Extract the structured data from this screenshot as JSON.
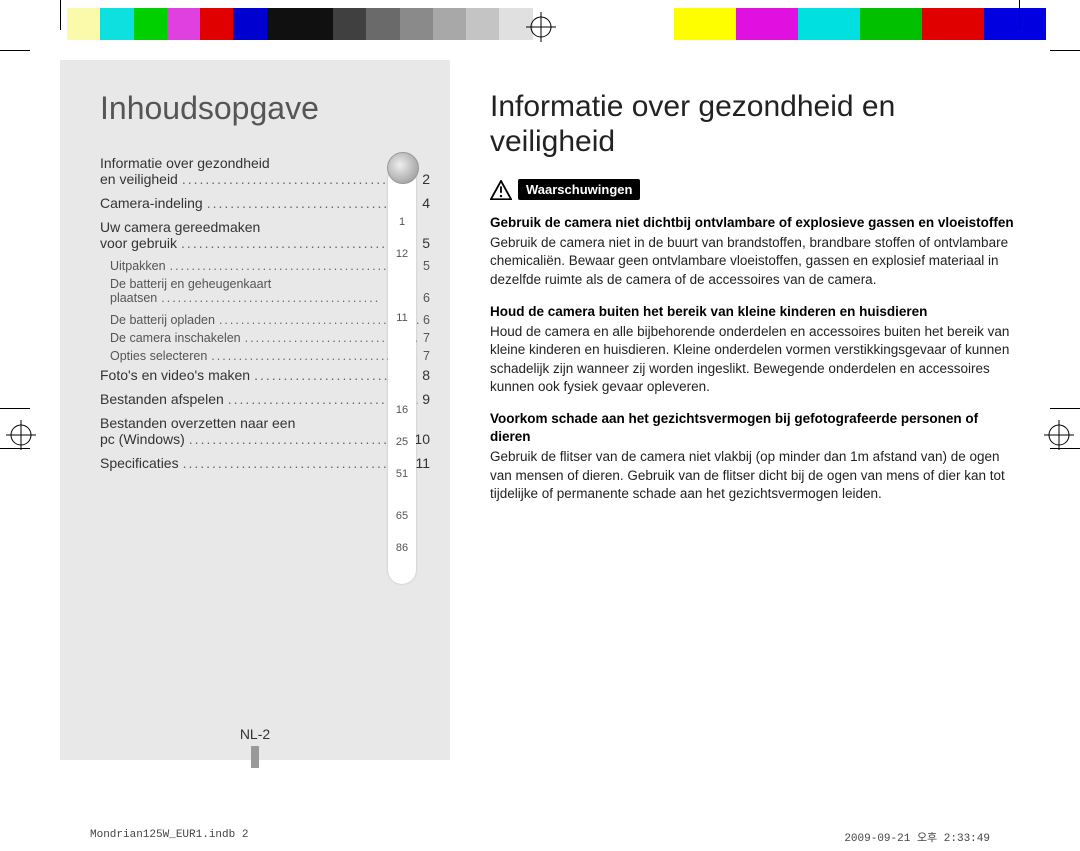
{
  "colorbars": [
    "#ffffff",
    "#fafaaa",
    "#0ee0e0",
    "#00d000",
    "#e040e0",
    "#e00000",
    "#0000d0",
    "#101010",
    "#101010",
    "#404040",
    "#6a6a6a",
    "#8a8a8a",
    "#a8a8a8",
    "#c4c4c4",
    "#e0e0e0",
    "#ffffff"
  ],
  "colorbars_right": [
    "#fefe00",
    "#e010e0",
    "#00e0e0",
    "#00c000",
    "#e00000",
    "#0000e0"
  ],
  "toc": {
    "title": "Inhoudsopgave",
    "items": [
      {
        "type": "two",
        "l1": "Informatie over gezondheid",
        "l2": "en veiligheid",
        "p": "2"
      },
      {
        "type": "one",
        "label": "Camera-indeling",
        "p": "4"
      },
      {
        "type": "two",
        "l1": "Uw camera gereedmaken",
        "l2": "voor gebruik",
        "p": "5"
      },
      {
        "type": "sub",
        "label": "Uitpakken",
        "p": "5"
      },
      {
        "type": "subtwo",
        "l1": "De batterij en geheugenkaart",
        "l2": "plaatsen",
        "p": "6"
      },
      {
        "type": "sub",
        "label": "De batterij opladen",
        "p": "6"
      },
      {
        "type": "sub",
        "label": "De camera inschakelen",
        "p": "7"
      },
      {
        "type": "sub",
        "label": "Opties selecteren",
        "p": "7"
      },
      {
        "type": "one",
        "label": "Foto's en video's maken",
        "p": "8"
      },
      {
        "type": "one",
        "label": "Bestanden afspelen",
        "p": "9"
      },
      {
        "type": "two",
        "l1": "Bestanden overzetten naar een",
        "l2": "pc (Windows)",
        "p": "10"
      },
      {
        "type": "one",
        "label": "Specificaties",
        "p": "11"
      }
    ]
  },
  "page_column": [
    "1",
    "12",
    "11",
    "16",
    "25",
    "51",
    "65",
    "86"
  ],
  "page_column_spacing": [
    0,
    16,
    52,
    80,
    12,
    12,
    30,
    14
  ],
  "page_number_label": "NL-2",
  "safety": {
    "title": "Informatie over gezondheid en veiligheid",
    "warning_label": "Waarschuwingen",
    "blocks": [
      {
        "heading": "Gebruik de camera niet dichtbij ontvlambare of explosieve gassen en vloeistoffen",
        "body": "Gebruik de camera niet in de buurt van brandstoffen, brandbare stoffen of ontvlambare chemicaliën. Bewaar geen ontvlambare vloeistoffen, gassen en explosief materiaal in dezelfde ruimte als de camera of de accessoires van de camera."
      },
      {
        "heading": "Houd de camera buiten het bereik van kleine kinderen en huisdieren",
        "body": "Houd de camera en alle bijbehorende onderdelen en accessoires buiten het bereik van kleine kinderen en huisdieren. Kleine onderdelen vormen verstikkingsgevaar of kunnen schadelijk zijn wanneer zij worden ingeslikt. Bewegende onderdelen en accessoires kunnen ook fysiek gevaar opleveren."
      },
      {
        "heading": "Voorkom schade aan het gezichtsvermogen bij gefotografeerde personen of dieren",
        "body": "Gebruik de flitser van de camera niet vlakbij (op minder dan 1m afstand van) de ogen van mensen of dieren. Gebruik van de flitser dicht bij de ogen van mens of dier kan tot tijdelijke of permanente schade aan het gezichtsvermogen leiden."
      }
    ]
  },
  "footer": {
    "left": "Mondrian125W_EUR1.indb   2",
    "right": "2009-09-21   오후 2:33:49"
  }
}
